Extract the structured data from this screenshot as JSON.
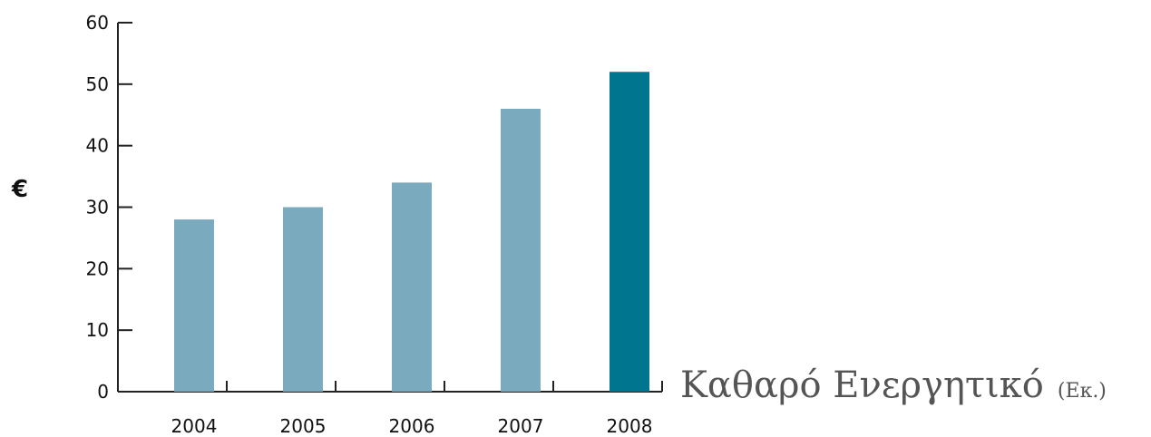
{
  "chart_data": {
    "type": "bar",
    "title": "Καθαρό Ενεργητικό",
    "title_unit": "(Εκ.)",
    "ylabel": "€",
    "xlabel": "",
    "categories": [
      "2004",
      "2005",
      "2006",
      "2007",
      "2008"
    ],
    "values": [
      28,
      30,
      34,
      46,
      52
    ],
    "ylim": [
      0,
      60
    ],
    "yticks": [
      0,
      10,
      20,
      30,
      40,
      50,
      60
    ],
    "grid": false,
    "colors": {
      "bar": "#7aaabe",
      "highlight": "#00758f",
      "axis": "#222222"
    },
    "highlight_index": 4
  }
}
